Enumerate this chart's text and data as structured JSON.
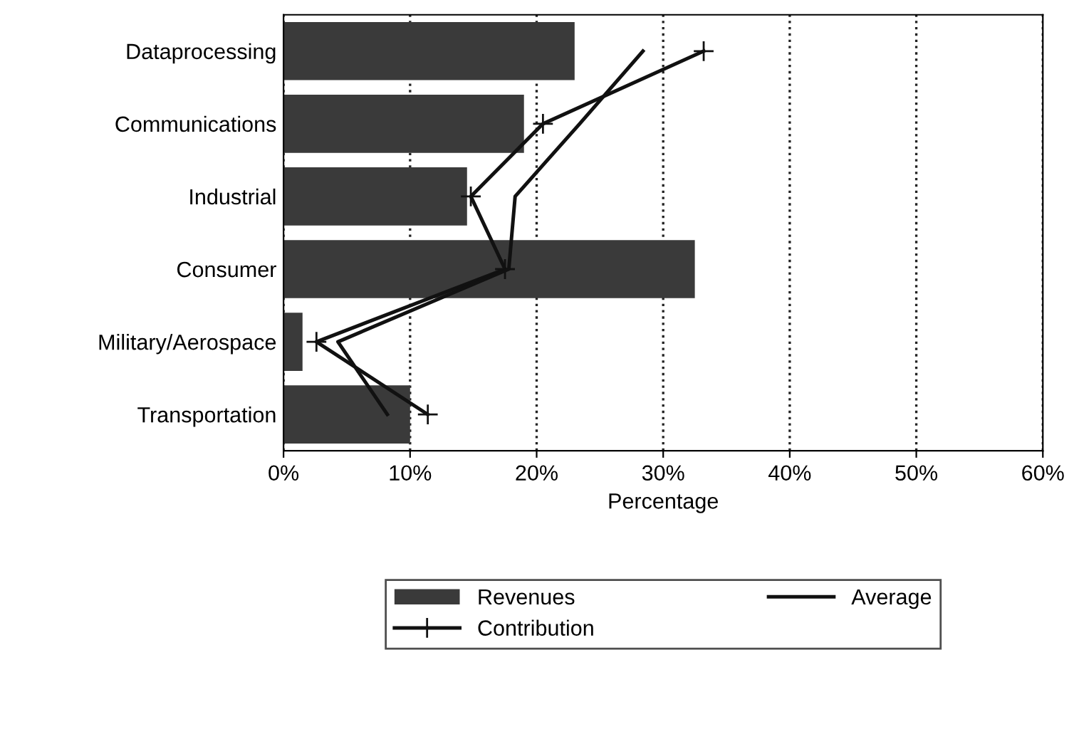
{
  "chart_data": {
    "type": "bar",
    "orientation": "horizontal",
    "xlabel": "Percentage",
    "categories": [
      "Dataprocessing",
      "Communications",
      "Industrial",
      "Consumer",
      "Military/Aerospace",
      "Transportation"
    ],
    "series": [
      {
        "name": "Revenues",
        "color": "#3a3a3a",
        "values": [
          23,
          19,
          14.5,
          32.5,
          1.5,
          10
        ]
      },
      {
        "name": "Contribution",
        "type": "line",
        "color": "#111111",
        "marker": "cross",
        "values": [
          33.2,
          20.5,
          14.8,
          17.5,
          2.6,
          11.4
        ]
      },
      {
        "name": "Average",
        "type": "line",
        "color": "#111111",
        "values": [
          28.4,
          23.4,
          18.3,
          17.8,
          4.3,
          8.2
        ]
      }
    ],
    "xlim": [
      0,
      60
    ],
    "xticks": [
      {
        "value": 0,
        "label": "0%"
      },
      {
        "value": 10,
        "label": "10%"
      },
      {
        "value": 20,
        "label": "20%"
      },
      {
        "value": 30,
        "label": "30%"
      },
      {
        "value": 40,
        "label": "40%"
      },
      {
        "value": 50,
        "label": "50%"
      },
      {
        "value": 60,
        "label": "60%"
      }
    ],
    "grid": "x",
    "legend": "bottom"
  }
}
